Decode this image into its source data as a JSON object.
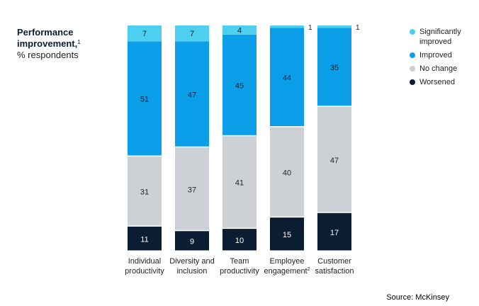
{
  "header": {
    "title": "Performance improvement,",
    "title_footnote": "1",
    "subtitle": "% respondents"
  },
  "source": "Source: McKinsey",
  "colors": {
    "significantly_improved": "#4dd0f0",
    "improved": "#0a9fe8",
    "no_change": "#cdd1d6",
    "worsened": "#0b1d33"
  },
  "legend": [
    {
      "label": "Significantly improved",
      "color": "#4dd0f0"
    },
    {
      "label": "Improved",
      "color": "#0a9fe8"
    },
    {
      "label": "No change",
      "color": "#cdd1d6"
    },
    {
      "label": "Worsened",
      "color": "#0b1d33"
    }
  ],
  "chart_data": {
    "type": "bar",
    "stacked": true,
    "normalized": true,
    "title": "Performance improvement,",
    "ylabel": "% respondents",
    "ylim": [
      0,
      100
    ],
    "grid": false,
    "legend_position": "right",
    "categories": [
      {
        "lines": [
          "Individual",
          "productivity"
        ],
        "footnote": ""
      },
      {
        "lines": [
          "Diversity and",
          "inclusion"
        ],
        "footnote": ""
      },
      {
        "lines": [
          "Team",
          "productivity"
        ],
        "footnote": ""
      },
      {
        "lines": [
          "Employee",
          "engagement"
        ],
        "footnote": "2"
      },
      {
        "lines": [
          "Customer",
          "satisfaction"
        ],
        "footnote": ""
      }
    ],
    "series": [
      {
        "name": "Worsened",
        "color": "#0b1d33",
        "label_color": "#ffffff",
        "values": [
          11,
          9,
          10,
          15,
          17
        ]
      },
      {
        "name": "No change",
        "color": "#cdd1d6",
        "label_color": "#222222",
        "values": [
          31,
          37,
          41,
          40,
          47
        ]
      },
      {
        "name": "Improved",
        "color": "#0a9fe8",
        "label_color": "#0b1d33",
        "values": [
          51,
          47,
          45,
          44,
          35
        ]
      },
      {
        "name": "Significantly improved",
        "color": "#4dd0f0",
        "label_color": "#0b1d33",
        "values": [
          7,
          7,
          4,
          1,
          1
        ]
      }
    ]
  }
}
